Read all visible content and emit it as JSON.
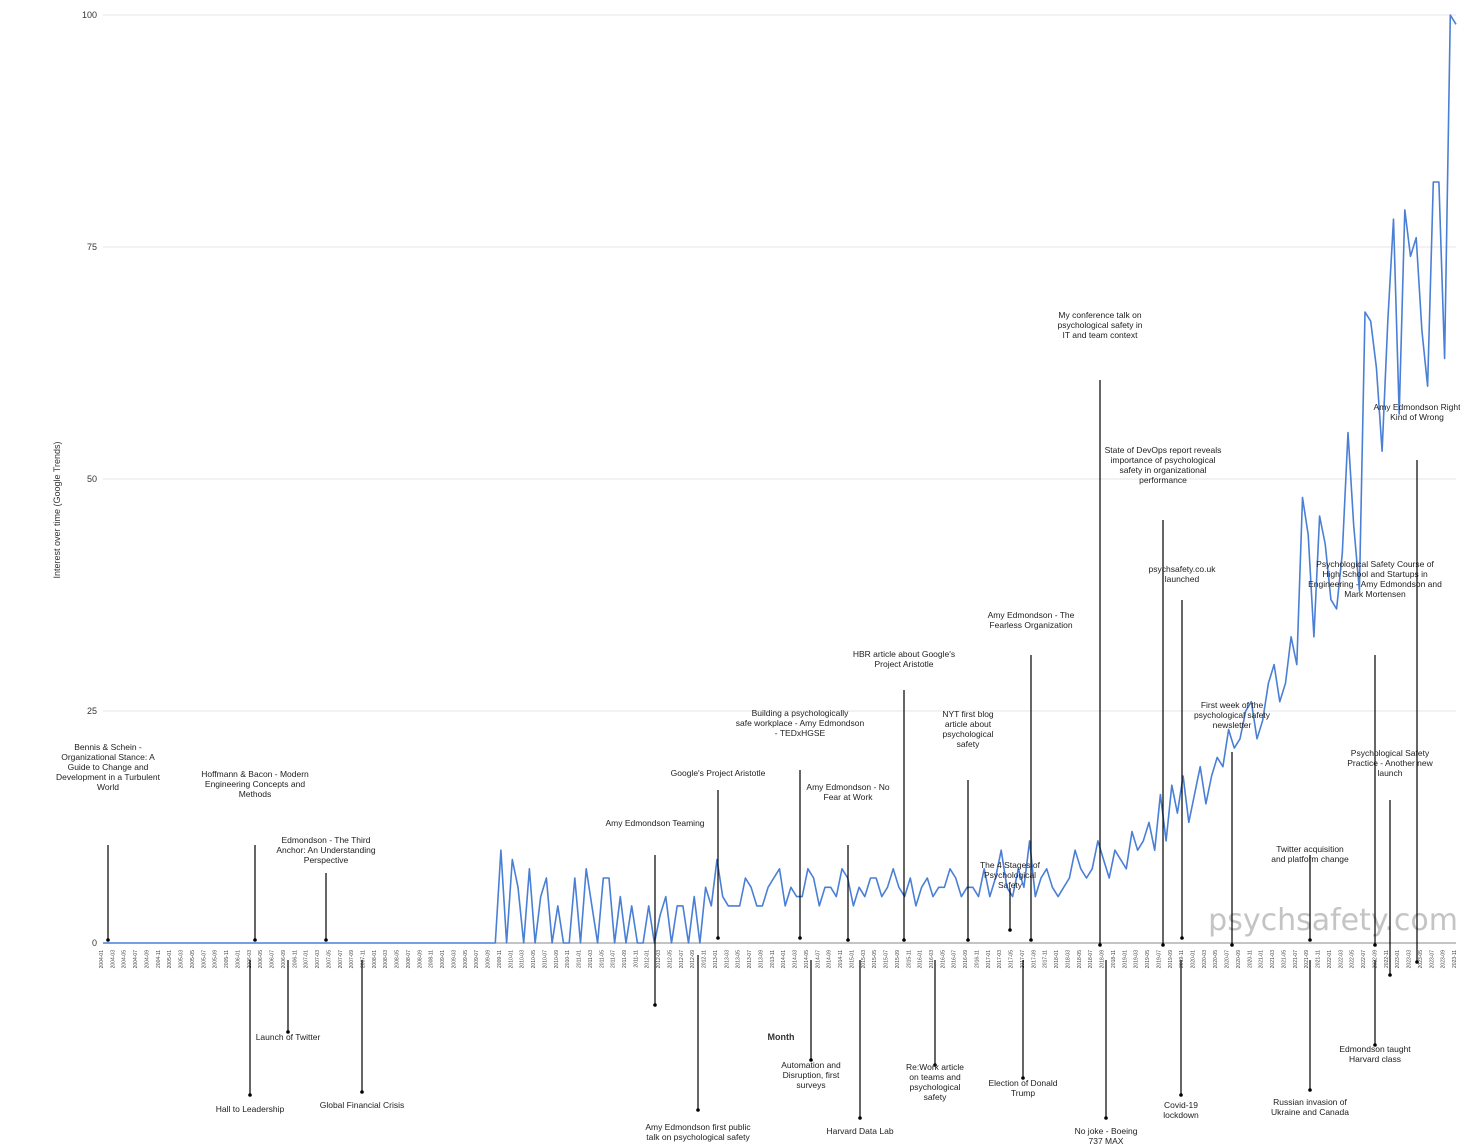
{
  "chart_data": {
    "type": "line",
    "title": "",
    "xlabel": "Month",
    "ylabel": "Interest over time (Google Trends)",
    "ylim": [
      0,
      100
    ],
    "y_ticks": [
      "0",
      "25",
      "50",
      "75",
      "100"
    ],
    "grid": true,
    "line_color": "#4a7fd6",
    "x_start": "2004-01",
    "series": [
      {
        "values": [
          0,
          0,
          0,
          0,
          0,
          0,
          0,
          0,
          0,
          0,
          0,
          0,
          0,
          0,
          0,
          0,
          0,
          0,
          0,
          0,
          0,
          0,
          0,
          0,
          0,
          0,
          0,
          0,
          0,
          0,
          0,
          0,
          0,
          0,
          0,
          0,
          0,
          0,
          0,
          0,
          0,
          0,
          0,
          0,
          0,
          0,
          0,
          0,
          0,
          0,
          0,
          0,
          0,
          0,
          0,
          0,
          0,
          0,
          0,
          0,
          0,
          0,
          0,
          0,
          0,
          0,
          0,
          0,
          0,
          0,
          10,
          0,
          9,
          6,
          0,
          8,
          0,
          5,
          7,
          0,
          4,
          0,
          0,
          7,
          0,
          8,
          4,
          0,
          7,
          7,
          0,
          5,
          0,
          4,
          0,
          0,
          4,
          0,
          3,
          5,
          0,
          4,
          4,
          0,
          5,
          0,
          6,
          4,
          9,
          5,
          4,
          4,
          4,
          7,
          6,
          4,
          4,
          6,
          7,
          8,
          4,
          6,
          5,
          5,
          8,
          7,
          4,
          6,
          6,
          5,
          8,
          7,
          4,
          6,
          5,
          7,
          7,
          5,
          6,
          8,
          6,
          5,
          7,
          4,
          6,
          7,
          5,
          6,
          6,
          8,
          7,
          5,
          6,
          6,
          5,
          8,
          5,
          7,
          10,
          6,
          5,
          8,
          6,
          11,
          5,
          7,
          8,
          6,
          5,
          6,
          7,
          10,
          8,
          7,
          8,
          11,
          9,
          7,
          10,
          9,
          8,
          12,
          10,
          11,
          13,
          10,
          16,
          11,
          17,
          14,
          18,
          13,
          16,
          19,
          15,
          18,
          20,
          19,
          23,
          21,
          22,
          25,
          26,
          22,
          24,
          28,
          30,
          26,
          28,
          33,
          30,
          48,
          44,
          33,
          46,
          43,
          37,
          36,
          42,
          55,
          45,
          38,
          68,
          67,
          62,
          53,
          67,
          78,
          57,
          79,
          74,
          76,
          66,
          60,
          82,
          82,
          63,
          100,
          99
        ]
      }
    ]
  },
  "watermark": "psychsafety.com",
  "annotations": [
    {
      "text": "Bennis & Schein - Organizational Stance: A Guide to Change and Development in a Turbulent World"
    },
    {
      "text": "Hall to Leadership"
    },
    {
      "text": "Hoffmann & Bacon - Modern Engineering Concepts and Methods"
    },
    {
      "text": "Launch of Twitter"
    },
    {
      "text": "Edmondson - The Third Anchor: An Understanding Perspective"
    },
    {
      "text": "Global Financial Crisis"
    },
    {
      "text": "Amy Edmondson Teaming"
    },
    {
      "text": "Amy Edmondson first public talk on psychological safety"
    },
    {
      "text": "Google's Project Aristotle"
    },
    {
      "text": "Building a psychologically safe workplace - Amy Edmondson - TEDxHGSE"
    },
    {
      "text": "Amy Edmondson - No Fear at Work"
    },
    {
      "text": "Re:Work article on teams and psychological safety"
    },
    {
      "text": "Automation and Disruption, first surveys"
    },
    {
      "text": "HBR article about Google's Project Aristotle"
    },
    {
      "text": "Harvard Data Lab"
    },
    {
      "text": "NYT first blog article about psychological safety"
    },
    {
      "text": "Election of Donald Trump"
    },
    {
      "text": "Amy Edmondson - The Fearless Organization"
    },
    {
      "text": "The 4 Stages of Psychological Safety"
    },
    {
      "text": "No joke - Boeing 737 MAX"
    },
    {
      "text": "My conference talk on psychological safety in IT and team context"
    },
    {
      "text": "State of DevOps report reveals importance of psychological safety in organizational performance"
    },
    {
      "text": "psychsafety.co.uk launched"
    },
    {
      "text": "Covid-19 lockdown"
    },
    {
      "text": "First week of the psychological safety newsletter"
    },
    {
      "text": "Russian invasion of Ukraine and Canada"
    },
    {
      "text": "Psychological Safety Course of High School and Startups in Engineering - Amy Edmondson and Mark Mortensen"
    },
    {
      "text": "Twitter acquisition and platform change"
    },
    {
      "text": "Psychological Safety Practice - Another new launch"
    },
    {
      "text": "Amy Edmondson Right Kind of Wrong"
    },
    {
      "text": "Edmondson taught Harvard class"
    }
  ]
}
